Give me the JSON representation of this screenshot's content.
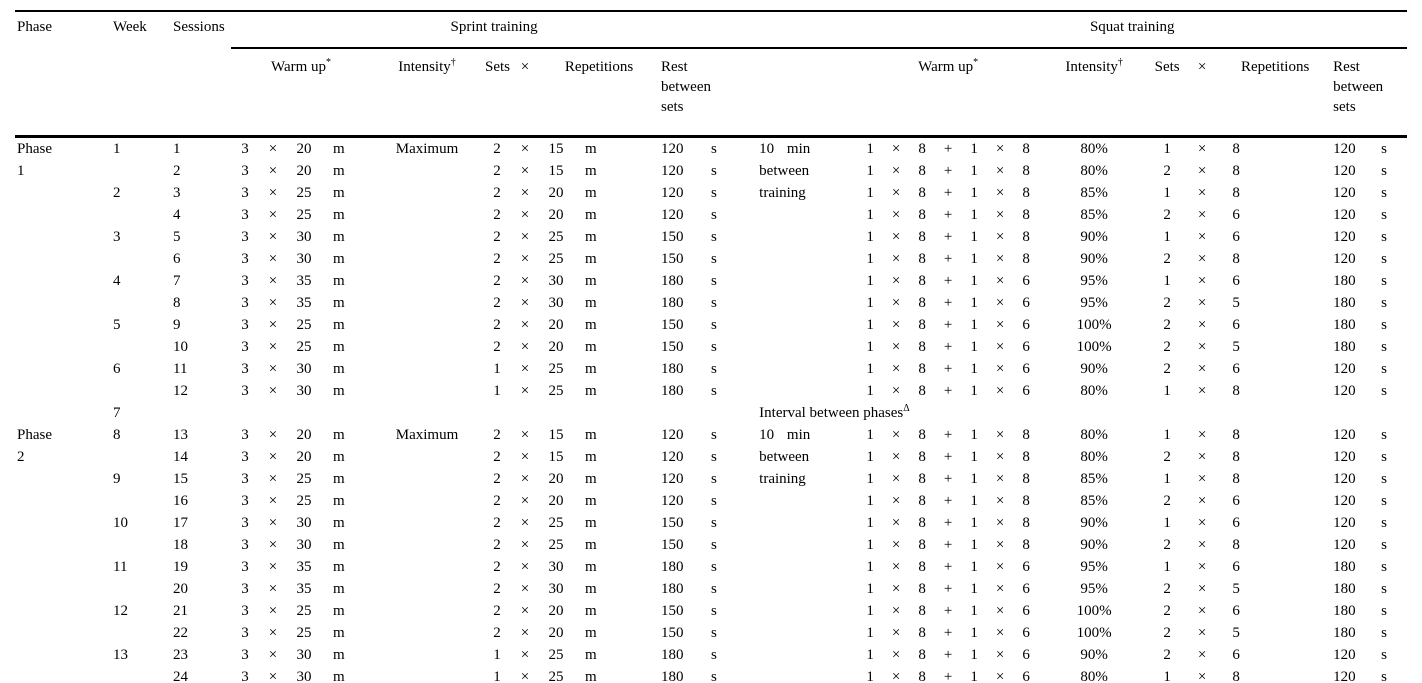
{
  "table": {
    "header": {
      "phase": "Phase",
      "week": "Week",
      "sessions": "Sessions",
      "sprint_training": "Sprint training",
      "squat_training": "Squat training",
      "warm_up": "Warm up",
      "warm_up_sup": "*",
      "intensity": "Intensity",
      "intensity_sup": "†",
      "sets": "Sets",
      "times": "×",
      "repetitions": "Repetitions",
      "rest_between_sets": "Rest between sets"
    },
    "rows": [
      [
        "Phase",
        "1",
        "1",
        "3",
        "×",
        "20",
        "m",
        "Maximum",
        "2",
        "×",
        "15",
        "m",
        "120",
        "s",
        "10 min",
        "1",
        "×",
        "8",
        "+",
        "1",
        "×",
        "8",
        "80%",
        "1",
        "×",
        "8",
        "",
        "120",
        "s"
      ],
      [
        "1",
        "",
        "2",
        "3",
        "×",
        "20",
        "m",
        "",
        "2",
        "×",
        "15",
        "m",
        "120",
        "s",
        "between",
        "1",
        "×",
        "8",
        "+",
        "1",
        "×",
        "8",
        "80%",
        "2",
        "×",
        "8",
        "",
        "120",
        "s"
      ],
      [
        "",
        "2",
        "3",
        "3",
        "×",
        "25",
        "m",
        "",
        "2",
        "×",
        "20",
        "m",
        "120",
        "s",
        "training",
        "1",
        "×",
        "8",
        "+",
        "1",
        "×",
        "8",
        "85%",
        "1",
        "×",
        "8",
        "",
        "120",
        "s"
      ],
      [
        "",
        "",
        "4",
        "3",
        "×",
        "25",
        "m",
        "",
        "2",
        "×",
        "20",
        "m",
        "120",
        "s",
        "",
        "1",
        "×",
        "8",
        "+",
        "1",
        "×",
        "8",
        "85%",
        "2",
        "×",
        "6",
        "",
        "120",
        "s"
      ],
      [
        "",
        "3",
        "5",
        "3",
        "×",
        "30",
        "m",
        "",
        "2",
        "×",
        "25",
        "m",
        "150",
        "s",
        "",
        "1",
        "×",
        "8",
        "+",
        "1",
        "×",
        "8",
        "90%",
        "1",
        "×",
        "6",
        "",
        "120",
        "s"
      ],
      [
        "",
        "",
        "6",
        "3",
        "×",
        "30",
        "m",
        "",
        "2",
        "×",
        "25",
        "m",
        "150",
        "s",
        "",
        "1",
        "×",
        "8",
        "+",
        "1",
        "×",
        "8",
        "90%",
        "2",
        "×",
        "8",
        "",
        "120",
        "s"
      ],
      [
        "",
        "4",
        "7",
        "3",
        "×",
        "35",
        "m",
        "",
        "2",
        "×",
        "30",
        "m",
        "180",
        "s",
        "",
        "1",
        "×",
        "8",
        "+",
        "1",
        "×",
        "6",
        "95%",
        "1",
        "×",
        "6",
        "",
        "180",
        "s"
      ],
      [
        "",
        "",
        "8",
        "3",
        "×",
        "35",
        "m",
        "",
        "2",
        "×",
        "30",
        "m",
        "180",
        "s",
        "",
        "1",
        "×",
        "8",
        "+",
        "1",
        "×",
        "6",
        "95%",
        "2",
        "×",
        "5",
        "",
        "180",
        "s"
      ],
      [
        "",
        "5",
        "9",
        "3",
        "×",
        "25",
        "m",
        "",
        "2",
        "×",
        "20",
        "m",
        "150",
        "s",
        "",
        "1",
        "×",
        "8",
        "+",
        "1",
        "×",
        "6",
        "100%",
        "2",
        "×",
        "6",
        "",
        "180",
        "s"
      ],
      [
        "",
        "",
        "10",
        "3",
        "×",
        "25",
        "m",
        "",
        "2",
        "×",
        "20",
        "m",
        "150",
        "s",
        "",
        "1",
        "×",
        "8",
        "+",
        "1",
        "×",
        "6",
        "100%",
        "2",
        "×",
        "5",
        "",
        "180",
        "s"
      ],
      [
        "",
        "6",
        "11",
        "3",
        "×",
        "30",
        "m",
        "",
        "1",
        "×",
        "25",
        "m",
        "180",
        "s",
        "",
        "1",
        "×",
        "8",
        "+",
        "1",
        "×",
        "6",
        "90%",
        "2",
        "×",
        "6",
        "",
        "120",
        "s"
      ],
      [
        "",
        "",
        "12",
        "3",
        "×",
        "30",
        "m",
        "",
        "1",
        "×",
        "25",
        "m",
        "180",
        "s",
        "",
        "1",
        "×",
        "8",
        "+",
        "1",
        "×",
        "6",
        "80%",
        "1",
        "×",
        "8",
        "",
        "120",
        "s"
      ],
      {
        "type": "interval",
        "week": "7",
        "label": "Interval between phases",
        "sup": "Δ"
      },
      [
        "Phase",
        "8",
        "13",
        "3",
        "×",
        "20",
        "m",
        "Maximum",
        "2",
        "×",
        "15",
        "m",
        "120",
        "s",
        "10 min",
        "1",
        "×",
        "8",
        "+",
        "1",
        "×",
        "8",
        "80%",
        "1",
        "×",
        "8",
        "",
        "120",
        "s"
      ],
      [
        "2",
        "",
        "14",
        "3",
        "×",
        "20",
        "m",
        "",
        "2",
        "×",
        "15",
        "m",
        "120",
        "s",
        "between",
        "1",
        "×",
        "8",
        "+",
        "1",
        "×",
        "8",
        "80%",
        "2",
        "×",
        "8",
        "",
        "120",
        "s"
      ],
      [
        "",
        "9",
        "15",
        "3",
        "×",
        "25",
        "m",
        "",
        "2",
        "×",
        "20",
        "m",
        "120",
        "s",
        "training",
        "1",
        "×",
        "8",
        "+",
        "1",
        "×",
        "8",
        "85%",
        "1",
        "×",
        "8",
        "",
        "120",
        "s"
      ],
      [
        "",
        "",
        "16",
        "3",
        "×",
        "25",
        "m",
        "",
        "2",
        "×",
        "20",
        "m",
        "120",
        "s",
        "",
        "1",
        "×",
        "8",
        "+",
        "1",
        "×",
        "8",
        "85%",
        "2",
        "×",
        "6",
        "",
        "120",
        "s"
      ],
      [
        "",
        "10",
        "17",
        "3",
        "×",
        "30",
        "m",
        "",
        "2",
        "×",
        "25",
        "m",
        "150",
        "s",
        "",
        "1",
        "×",
        "8",
        "+",
        "1",
        "×",
        "8",
        "90%",
        "1",
        "×",
        "6",
        "",
        "120",
        "s"
      ],
      [
        "",
        "",
        "18",
        "3",
        "×",
        "30",
        "m",
        "",
        "2",
        "×",
        "25",
        "m",
        "150",
        "s",
        "",
        "1",
        "×",
        "8",
        "+",
        "1",
        "×",
        "8",
        "90%",
        "2",
        "×",
        "8",
        "",
        "120",
        "s"
      ],
      [
        "",
        "11",
        "19",
        "3",
        "×",
        "35",
        "m",
        "",
        "2",
        "×",
        "30",
        "m",
        "180",
        "s",
        "",
        "1",
        "×",
        "8",
        "+",
        "1",
        "×",
        "6",
        "95%",
        "1",
        "×",
        "6",
        "",
        "180",
        "s"
      ],
      [
        "",
        "",
        "20",
        "3",
        "×",
        "35",
        "m",
        "",
        "2",
        "×",
        "30",
        "m",
        "180",
        "s",
        "",
        "1",
        "×",
        "8",
        "+",
        "1",
        "×",
        "6",
        "95%",
        "2",
        "×",
        "5",
        "",
        "180",
        "s"
      ],
      [
        "",
        "12",
        "21",
        "3",
        "×",
        "25",
        "m",
        "",
        "2",
        "×",
        "20",
        "m",
        "150",
        "s",
        "",
        "1",
        "×",
        "8",
        "+",
        "1",
        "×",
        "6",
        "100%",
        "2",
        "×",
        "6",
        "",
        "180",
        "s"
      ],
      [
        "",
        "",
        "22",
        "3",
        "×",
        "25",
        "m",
        "",
        "2",
        "×",
        "20",
        "m",
        "150",
        "s",
        "",
        "1",
        "×",
        "8",
        "+",
        "1",
        "×",
        "6",
        "100%",
        "2",
        "×",
        "5",
        "",
        "180",
        "s"
      ],
      [
        "",
        "13",
        "23",
        "3",
        "×",
        "30",
        "m",
        "",
        "1",
        "×",
        "25",
        "m",
        "180",
        "s",
        "",
        "1",
        "×",
        "8",
        "+",
        "1",
        "×",
        "6",
        "90%",
        "2",
        "×",
        "6",
        "",
        "120",
        "s"
      ],
      [
        "",
        "",
        "24",
        "3",
        "×",
        "30",
        "m",
        "",
        "1",
        "×",
        "25",
        "m",
        "180",
        "s",
        "",
        "1",
        "×",
        "8",
        "+",
        "1",
        "×",
        "6",
        "80%",
        "1",
        "×",
        "8",
        "",
        "120",
        "s"
      ]
    ]
  }
}
